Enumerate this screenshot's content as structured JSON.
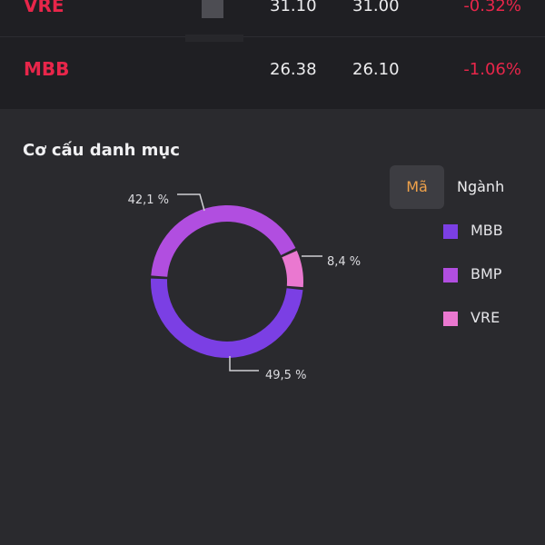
{
  "holdings": [
    {
      "symbol": "VRE",
      "price": "31.10",
      "ref_price": "31.00",
      "change": "-0.32%"
    },
    {
      "symbol": "MBB",
      "price": "26.38",
      "ref_price": "26.10",
      "change": "-1.06%"
    }
  ],
  "portfolio": {
    "title": "Cơ cấu danh mục",
    "toggle": {
      "ma_label": "Mã",
      "nganh_label": "Ngành"
    },
    "legend": [
      {
        "label": "MBB",
        "color": "#7b3fe4"
      },
      {
        "label": "BMP",
        "color": "#b14ee0"
      },
      {
        "label": "VRE",
        "color": "#ea78d0"
      }
    ]
  },
  "chart_data": {
    "type": "pie",
    "variant": "donut",
    "slices": [
      {
        "name": "MBB",
        "value": 49.5,
        "label": "49,5 %",
        "color": "#7b3fe4"
      },
      {
        "name": "BMP",
        "value": 42.1,
        "label": "42,1 %",
        "color": "#b14ee0"
      },
      {
        "name": "VRE",
        "value": 8.4,
        "label": "8,4 %",
        "color": "#ea78d0"
      }
    ]
  }
}
